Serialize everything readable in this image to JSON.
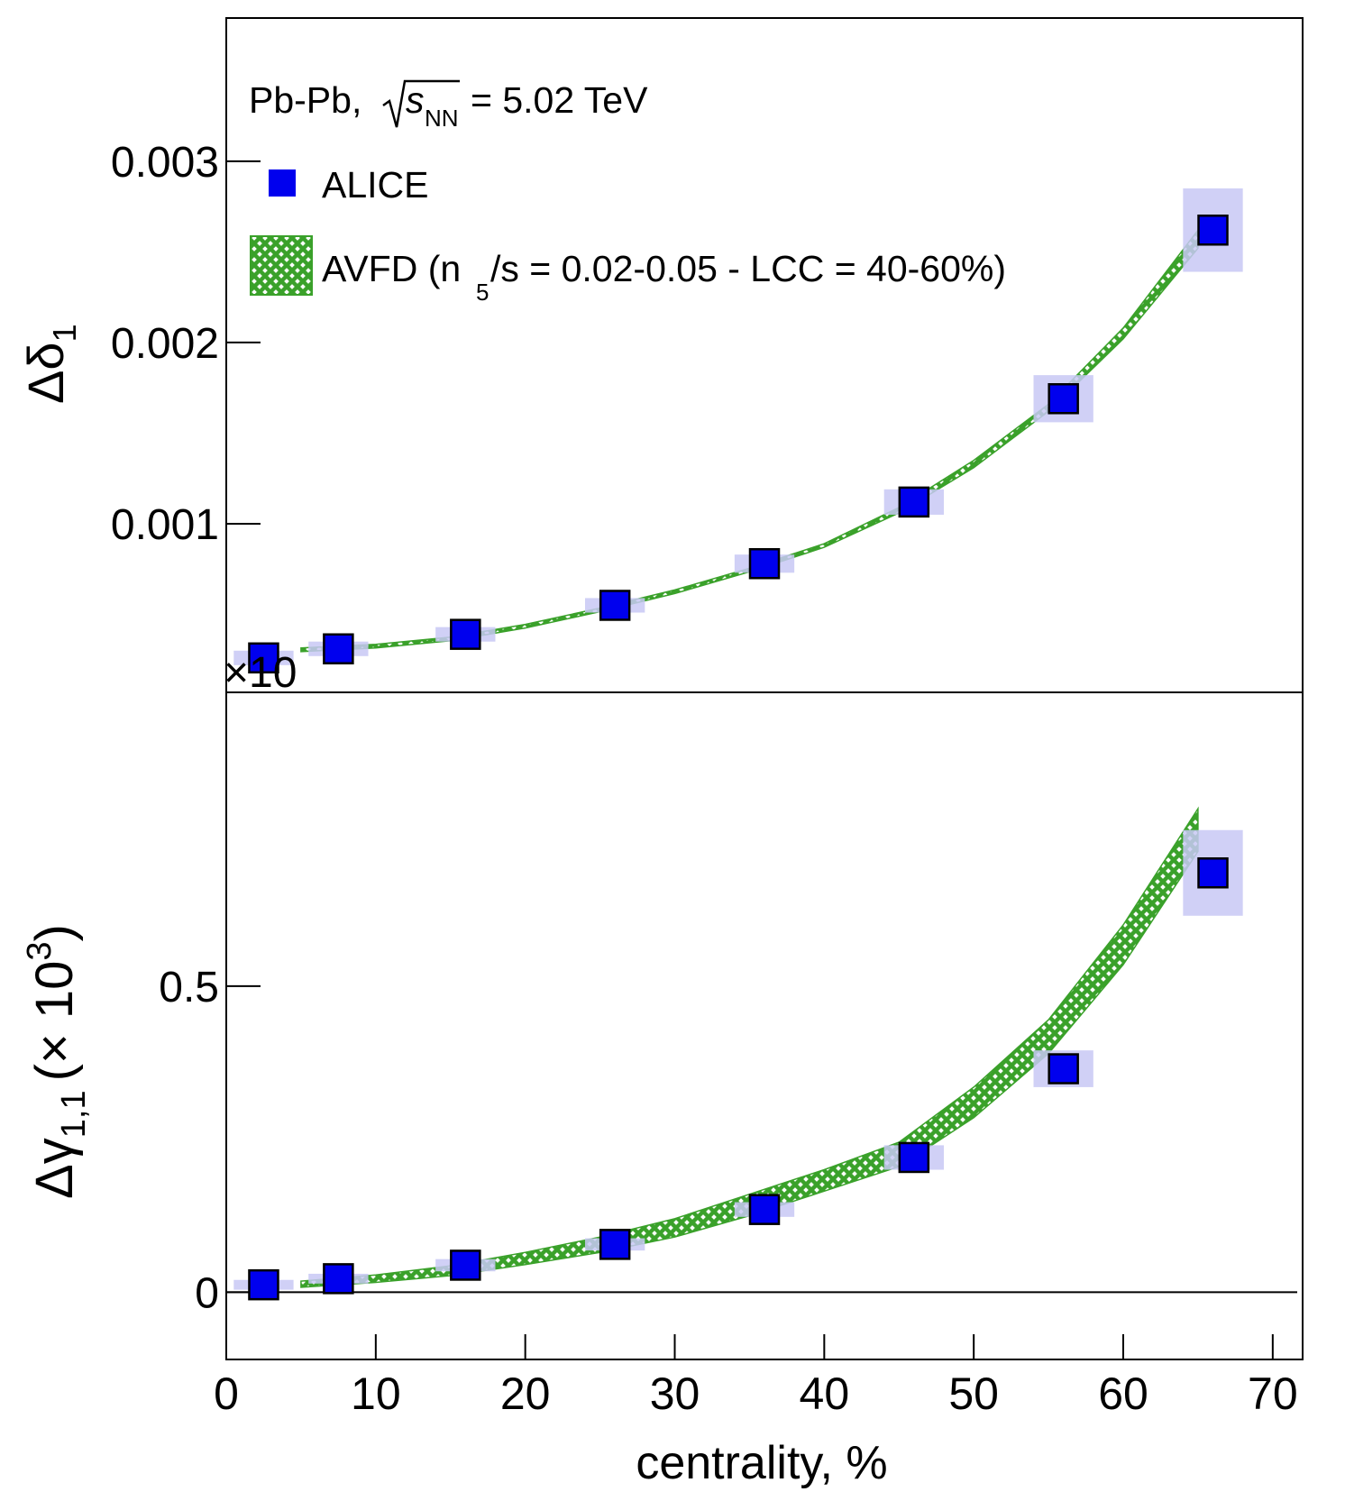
{
  "chart_data": [
    {
      "type": "scatter",
      "panel": "top",
      "ylabel_symbol": "Δδ",
      "ylabel_sub": "1",
      "exponent_label": "×10",
      "xlim": [
        0,
        72
      ],
      "ylim": [
        7e-05,
        0.00379
      ],
      "yticks": [
        0.001,
        0.002,
        0.003
      ],
      "ytick_labels": [
        "0.001",
        "0.002",
        "0.003"
      ],
      "annotation": {
        "system": "Pb-Pb,",
        "sqrt_var": "s",
        "sqrt_sub": "NN",
        "energy": "= 5.02 TeV"
      },
      "legend": {
        "position": "top-left",
        "items": [
          {
            "label": "ALICE",
            "marker": "square",
            "color": "#0000ee"
          },
          {
            "label_pre": "AVFD (n",
            "label_sub": "5",
            "label_post": "/s = 0.02-0.05 - LCC = 40-60%)",
            "marker": "hatched-band",
            "color": "#3aa12a"
          }
        ]
      },
      "series": [
        {
          "name": "ALICE",
          "x": [
            2.5,
            7.5,
            16,
            26,
            36,
            46,
            56,
            66
          ],
          "y": [
            0.00026,
            0.00031,
            0.00039,
            0.00055,
            0.00078,
            0.00112,
            0.00169,
            0.00262
          ],
          "sys_halfwidth_x": [
            2,
            2,
            2,
            2,
            2,
            2,
            2,
            2
          ],
          "sys_halfheight_y": [
            4e-05,
            4e-05,
            4e-05,
            4e-05,
            5e-05,
            7e-05,
            0.00013,
            0.00023
          ]
        },
        {
          "name": "AVFD (n5/s = 0.02-0.05 - LCC = 40-60%)",
          "type": "band",
          "x": [
            5,
            10,
            15,
            20,
            25,
            30,
            35,
            40,
            45,
            50,
            55,
            60,
            65
          ],
          "y_low": [
            0.000295,
            0.000315,
            0.000355,
            0.000425,
            0.000515,
            0.000615,
            0.000735,
            0.00087,
            0.00106,
            0.00131,
            0.00162,
            0.00202,
            0.00252
          ],
          "y_high": [
            0.000315,
            0.000335,
            0.000375,
            0.000445,
            0.000535,
            0.000635,
            0.000755,
            0.00089,
            0.00109,
            0.00135,
            0.00166,
            0.00208,
            0.00262
          ]
        }
      ]
    },
    {
      "type": "scatter",
      "panel": "bottom",
      "ylabel_symbol": "Δγ",
      "ylabel_sub": "1,1",
      "ylabel_factor_open": "(× 10",
      "ylabel_factor_exp": "3",
      "ylabel_factor_close": ")",
      "xlabel": "centrality, %",
      "xlim": [
        0,
        72
      ],
      "ylim": [
        -0.11,
        0.98
      ],
      "xticks": [
        0,
        10,
        20,
        30,
        40,
        50,
        60,
        70
      ],
      "xtick_labels": [
        "0",
        "10",
        "20",
        "30",
        "40",
        "50",
        "60",
        "70"
      ],
      "yticks": [
        0,
        0.5
      ],
      "ytick_labels": [
        "0",
        "0.5"
      ],
      "zero_line": true,
      "series": [
        {
          "name": "ALICE",
          "x": [
            2.5,
            7.5,
            16,
            26,
            36,
            46,
            56,
            66
          ],
          "y": [
            0.012,
            0.022,
            0.044,
            0.078,
            0.135,
            0.22,
            0.365,
            0.685
          ],
          "sys_halfwidth_x": [
            2,
            2,
            2,
            2,
            2,
            2,
            2,
            2
          ],
          "sys_halfheight_y": [
            0.008,
            0.008,
            0.01,
            0.01,
            0.012,
            0.02,
            0.03,
            0.07
          ]
        },
        {
          "name": "AVFD (n5/s = 0.02-0.05 - LCC = 40-60%)",
          "type": "band",
          "x": [
            5,
            10,
            15,
            20,
            25,
            30,
            35,
            40,
            45,
            50,
            55,
            60,
            65
          ],
          "y_low": [
            0.008,
            0.016,
            0.027,
            0.045,
            0.065,
            0.09,
            0.125,
            0.165,
            0.205,
            0.285,
            0.39,
            0.535,
            0.72
          ],
          "y_high": [
            0.018,
            0.028,
            0.043,
            0.065,
            0.09,
            0.12,
            0.16,
            0.2,
            0.245,
            0.335,
            0.445,
            0.6,
            0.79
          ]
        }
      ]
    }
  ]
}
